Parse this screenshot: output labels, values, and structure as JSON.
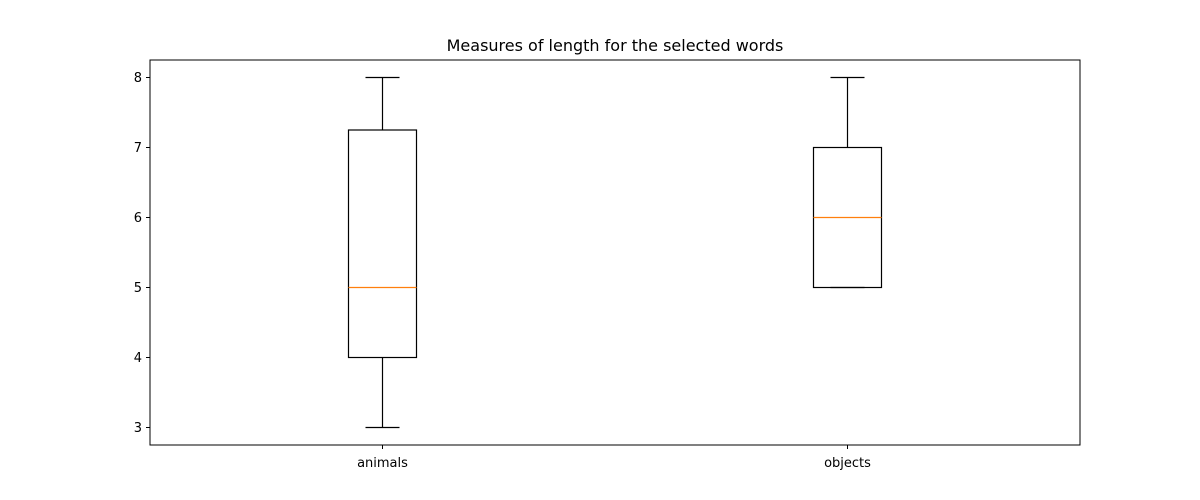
{
  "chart_data": {
    "type": "box",
    "title": "Measures of length for the selected words",
    "xlabel": "",
    "ylabel": "",
    "categories": [
      "animals",
      "objects"
    ],
    "boxes": [
      {
        "label": "animals",
        "whisker_low": 3,
        "q1": 4,
        "median": 5,
        "q3": 7.25,
        "whisker_high": 8
      },
      {
        "label": "objects",
        "whisker_low": 5,
        "q1": 5,
        "median": 6,
        "q3": 7,
        "whisker_high": 8
      }
    ],
    "yticks": [
      3,
      4,
      5,
      6,
      7,
      8
    ],
    "ylim": [
      2.75,
      8.25
    ],
    "grid": false,
    "colors": {
      "box": "#000000",
      "median": "#ff7f0e"
    }
  }
}
